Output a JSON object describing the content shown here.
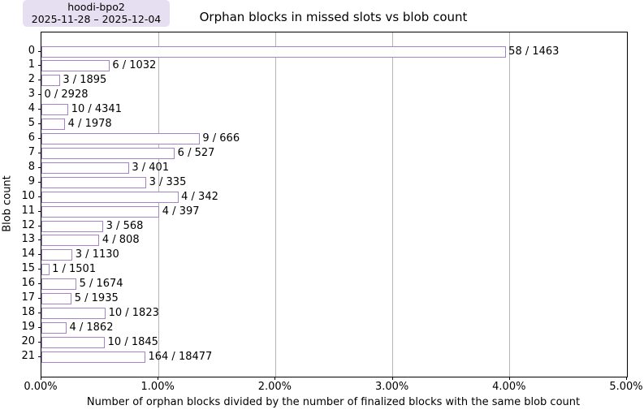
{
  "legend": {
    "series_label": "hoodi-bpo2",
    "date_range": "2025-11-28 – 2025-12-04"
  },
  "chart_data": {
    "type": "bar",
    "orientation": "horizontal",
    "title": "Orphan blocks in missed slots vs blob count",
    "xlabel": "Number of orphan blocks divided by the number of finalized blocks with the same blob count",
    "ylabel": "Blob count",
    "xlim_pct": [
      0,
      5
    ],
    "x_tick_labels": [
      "0.00%",
      "1.00%",
      "2.00%",
      "3.00%",
      "4.00%",
      "5.00%"
    ],
    "grid": "vertical-only",
    "legend_position": "top-left-outside",
    "categories": [
      "0",
      "1",
      "2",
      "3",
      "4",
      "5",
      "6",
      "7",
      "8",
      "9",
      "10",
      "11",
      "12",
      "13",
      "14",
      "15",
      "16",
      "17",
      "18",
      "19",
      "20",
      "21"
    ],
    "bars": [
      {
        "blob_count": 0,
        "orphans": 58,
        "finalized": 1463,
        "label": "58 / 1463",
        "value_pct": 3.9645
      },
      {
        "blob_count": 1,
        "orphans": 6,
        "finalized": 1032,
        "label": "6 / 1032",
        "value_pct": 0.5814
      },
      {
        "blob_count": 2,
        "orphans": 3,
        "finalized": 1895,
        "label": "3 / 1895",
        "value_pct": 0.1583
      },
      {
        "blob_count": 3,
        "orphans": 0,
        "finalized": 2928,
        "label": "0 / 2928",
        "value_pct": 0.0
      },
      {
        "blob_count": 4,
        "orphans": 10,
        "finalized": 4341,
        "label": "10 / 4341",
        "value_pct": 0.2304
      },
      {
        "blob_count": 5,
        "orphans": 4,
        "finalized": 1978,
        "label": "4 / 1978",
        "value_pct": 0.2022
      },
      {
        "blob_count": 6,
        "orphans": 9,
        "finalized": 666,
        "label": "9 / 666",
        "value_pct": 1.3514
      },
      {
        "blob_count": 7,
        "orphans": 6,
        "finalized": 527,
        "label": "6 / 527",
        "value_pct": 1.1385
      },
      {
        "blob_count": 8,
        "orphans": 3,
        "finalized": 401,
        "label": "3 / 401",
        "value_pct": 0.7481
      },
      {
        "blob_count": 9,
        "orphans": 3,
        "finalized": 335,
        "label": "3 / 335",
        "value_pct": 0.8955
      },
      {
        "blob_count": 10,
        "orphans": 4,
        "finalized": 342,
        "label": "4 / 342",
        "value_pct": 1.1696
      },
      {
        "blob_count": 11,
        "orphans": 4,
        "finalized": 397,
        "label": "4 / 397",
        "value_pct": 1.0076
      },
      {
        "blob_count": 12,
        "orphans": 3,
        "finalized": 568,
        "label": "3 / 568",
        "value_pct": 0.5282
      },
      {
        "blob_count": 13,
        "orphans": 4,
        "finalized": 808,
        "label": "4 / 808",
        "value_pct": 0.495
      },
      {
        "blob_count": 14,
        "orphans": 3,
        "finalized": 1130,
        "label": "3 / 1130",
        "value_pct": 0.2655
      },
      {
        "blob_count": 15,
        "orphans": 1,
        "finalized": 1501,
        "label": "1 / 1501",
        "value_pct": 0.0666
      },
      {
        "blob_count": 16,
        "orphans": 5,
        "finalized": 1674,
        "label": "5 / 1674",
        "value_pct": 0.2987
      },
      {
        "blob_count": 17,
        "orphans": 5,
        "finalized": 1935,
        "label": "5 / 1935",
        "value_pct": 0.2584
      },
      {
        "blob_count": 18,
        "orphans": 10,
        "finalized": 1823,
        "label": "10 / 1823",
        "value_pct": 0.5485
      },
      {
        "blob_count": 19,
        "orphans": 4,
        "finalized": 1862,
        "label": "4 / 1862",
        "value_pct": 0.2148
      },
      {
        "blob_count": 20,
        "orphans": 10,
        "finalized": 1845,
        "label": "10 / 1845",
        "value_pct": 0.542
      },
      {
        "blob_count": 21,
        "orphans": 164,
        "finalized": 18477,
        "label": "164 / 18477",
        "value_pct": 0.8876
      }
    ],
    "colors": {
      "bar_fill": "#ffffff",
      "bar_border": "#a583c9",
      "gridline": "#b4b4b4",
      "legend_bg": "#e5dff1",
      "spine": "#000000",
      "text": "#000000"
    }
  }
}
